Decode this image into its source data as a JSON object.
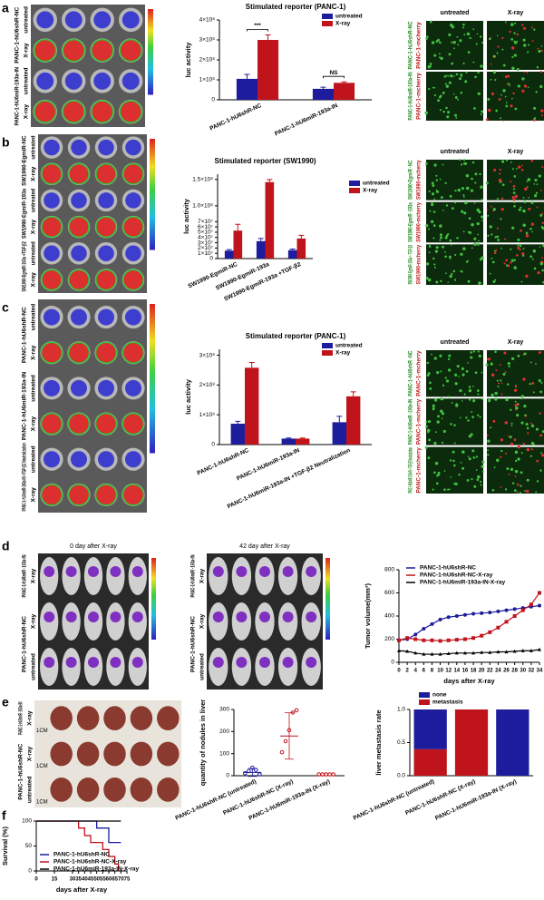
{
  "figure": {
    "panel_letters": [
      "a",
      "b",
      "c",
      "d",
      "e",
      "f"
    ]
  },
  "images": [
    {
      "groups": [
        {
          "label": "PANC-1-hU6shR-NC",
          "rows": [
            "untreated",
            "X-ray"
          ]
        },
        {
          "label": "PANC-1-hU6miR-193a-IN",
          "rows": [
            "untreated",
            "X-ray"
          ]
        }
      ]
    },
    {
      "columns": [
        "untreated",
        "X-ray"
      ],
      "groups": [
        {
          "label": "PANC-1-hU6shR-NC",
          "rows": [
            "PANC-1-mcherry"
          ]
        },
        {
          "label": "PANC-1-hU6miR-193a-IN",
          "rows": [
            "PANC-1-mcherry"
          ]
        }
      ]
    },
    {
      "groups": [
        {
          "label": "SW1990-EgmiR-NC",
          "rows": [
            "untreated",
            "X-ray"
          ]
        },
        {
          "label": "SW1990-EgmiR-193a",
          "rows": [
            "untreated",
            "X-ray"
          ]
        },
        {
          "label": "SW1990-EgmiR-193a +TGF-β2",
          "rows": [
            "untreated",
            "X-ray"
          ]
        }
      ]
    },
    {
      "columns": [
        "untreated",
        "X-ray"
      ],
      "groups": [
        {
          "label": "SW1990-EgmiR -NC",
          "rows": [
            "SW1990-mcherry"
          ]
        },
        {
          "label": "SW1990-EgmiR -193a",
          "rows": [
            "SW1990-mcherry"
          ]
        },
        {
          "label": "SW1990-EgmiR-193a + TGF-β2",
          "rows": [
            "SW1990-mcherry"
          ]
        }
      ]
    },
    {
      "groups": [
        {
          "label": "PANC-1-hU6shR-NC",
          "rows": [
            "untreated",
            "X-ray"
          ]
        },
        {
          "label": "PANC-1-hU6miR-193a-IN",
          "rows": [
            "untreated",
            "X-ray"
          ]
        },
        {
          "label": "PANC-1-hU6miR-193a-IN +TGF-β2 Neutralization",
          "rows": [
            "untreated",
            "X-ray"
          ]
        }
      ]
    },
    {
      "columns": [
        "untreated",
        "X-ray"
      ],
      "groups": [
        {
          "label": "PANC-1-hU6shR -NC",
          "rows": [
            "PANC-1-mcherry"
          ]
        },
        {
          "label": "PANC-1-hU6miR -193a-IN",
          "rows": [
            "PANC-1-mcherry"
          ]
        },
        {
          "label": "PANC-1-hU6miR-193a-IN + TGF-β2 Neutralization",
          "rows": [
            "PANC-1-mcherry"
          ]
        }
      ]
    },
    {
      "title": "0 day after X-ray",
      "groups": [
        {
          "label": "PANC-1-hU6miR -193a-IN",
          "rows": [
            "X-ray"
          ]
        },
        {
          "label": "PANC-1-hU6shR-NC",
          "rows": [
            "X-ray",
            "untreated"
          ]
        }
      ]
    },
    {
      "title": "42 day after X-ray",
      "groups": [
        {
          "label": "PANC-1-hU6miR -193a-IN",
          "rows": [
            "X-ray"
          ]
        },
        {
          "label": "PANC-1-hU6shR-NC",
          "rows": [
            "X-ray",
            "untreated"
          ]
        }
      ]
    },
    {
      "groups": [
        {
          "label": "PANC-1-hU6miR -193a-IN",
          "rows": [
            "X-ray"
          ]
        },
        {
          "label": "PANC-1-hU6shR-NC",
          "rows": [
            "X-ray",
            "untreated"
          ]
        }
      ],
      "scale_labels": [
        "1CM",
        "1CM",
        "1CM"
      ]
    }
  ],
  "chart_data": [
    {
      "type": "bar",
      "title": "Stimulated reporter (PANC-1)",
      "y_label": "luc activity",
      "categories": [
        "PANC-1-hU6shR-NC",
        "PANC-1-hU6miR-193a-IN"
      ],
      "series": [
        {
          "name": "untreated",
          "color": "#1c1c9c",
          "values": [
            105000000,
            55000000
          ],
          "errors": [
            22000000,
            8000000
          ]
        },
        {
          "name": "X-ray",
          "color": "#c0141c",
          "values": [
            300000000,
            85000000
          ],
          "errors": [
            25000000,
            5000000
          ]
        }
      ],
      "ylim": [
        0,
        400000000
      ],
      "yticks": [
        0,
        {
          "value": 100000000,
          "label": "1×10⁸"
        },
        {
          "value": 200000000,
          "label": "2×10⁸"
        },
        {
          "value": 300000000,
          "label": "3×10⁸"
        },
        {
          "value": 400000000,
          "label": "4×10⁸"
        }
      ],
      "legend": "top-right",
      "annotations": [
        "***",
        "NS"
      ]
    },
    {
      "type": "bar",
      "title": "Stimulated reporter  (SW1990)",
      "y_label": "luc activity",
      "categories": [
        "SW1990-EgmiR-NC",
        "SW1990-EgmiR-193a",
        "SW1990-EgmiR-193a +TGF-β2"
      ],
      "series": [
        {
          "name": "untreated",
          "color": "#1c1c9c",
          "values": [
            15000000,
            33000000,
            16000000
          ],
          "errors": [
            2000000,
            5000000,
            2000000
          ]
        },
        {
          "name": "X-ray",
          "color": "#c0141c",
          "values": [
            53000000,
            145000000,
            38000000
          ],
          "errors": [
            12000000,
            5000000,
            6000000
          ]
        }
      ],
      "ylim": [
        0,
        160000000
      ],
      "yticks": [
        0,
        {
          "value": 10000000,
          "label": "1×10⁷"
        },
        {
          "value": 20000000,
          "label": "2×10⁷"
        },
        {
          "value": 30000000,
          "label": "3×10⁷"
        },
        {
          "value": 40000000,
          "label": "4×10⁷"
        },
        {
          "value": 50000000,
          "label": "5×10⁷"
        },
        {
          "value": 60000000,
          "label": "6×10⁷"
        },
        {
          "value": 70000000,
          "label": "7×10⁷"
        },
        {
          "value": 100000000,
          "label": "1.0×10⁸"
        },
        {
          "value": 150000000,
          "label": "1.5×10⁸"
        }
      ],
      "legend": "right"
    },
    {
      "type": "bar",
      "title": "Stimulated reporter (PANC-1)",
      "y_label": "luc activity",
      "categories": [
        "PANC-1-hU6shR-NC",
        "PANC-1-hU6miR-193a-IN",
        "PANC-1-hU6miR-193a-IN +TGF-β2 Neutralization"
      ],
      "series": [
        {
          "name": "untreated",
          "color": "#1c1c9c",
          "values": [
            70000000,
            20000000,
            75000000
          ],
          "errors": [
            8000000,
            2000000,
            20000000
          ]
        },
        {
          "name": "X-ray",
          "color": "#c0141c",
          "values": [
            258000000,
            20000000,
            162000000
          ],
          "errors": [
            18000000,
            2000000,
            15000000
          ]
        }
      ],
      "ylim": [
        0,
        320000000
      ],
      "yticks": [
        0,
        {
          "value": 100000000,
          "label": "1×10⁸"
        },
        {
          "value": 200000000,
          "label": "2×10⁸"
        },
        {
          "value": 300000000,
          "label": "3×10⁸"
        }
      ],
      "legend": "top-right"
    },
    {
      "type": "line",
      "y_label": "Tumor volume(mm³)",
      "x_label": "days after X-ray",
      "x": [
        0,
        2,
        4,
        6,
        8,
        10,
        12,
        14,
        16,
        18,
        20,
        22,
        24,
        26,
        28,
        30,
        32,
        34
      ],
      "series": [
        {
          "name": "PANC-1-hU6shR-NC",
          "color": "#1c1c9c",
          "values": [
            190,
            200,
            240,
            290,
            330,
            370,
            390,
            400,
            410,
            420,
            425,
            430,
            440,
            450,
            460,
            470,
            480,
            490
          ]
        },
        {
          "name": "PANC-1-hU6shR-NC-X-ray",
          "color": "#c0141c",
          "values": [
            190,
            210,
            200,
            190,
            190,
            185,
            190,
            195,
            200,
            210,
            230,
            260,
            300,
            350,
            400,
            450,
            500,
            600
          ]
        },
        {
          "name": "PANC-1-hU6miR-193a-IN-X-ray",
          "color": "#000000",
          "values": [
            100,
            95,
            80,
            70,
            70,
            70,
            75,
            80,
            80,
            80,
            85,
            85,
            90,
            90,
            95,
            100,
            100,
            110
          ]
        }
      ],
      "xlim": [
        0,
        34
      ],
      "xticks": [
        0,
        2,
        4,
        6,
        8,
        10,
        12,
        14,
        16,
        18,
        20,
        22,
        24,
        26,
        28,
        30,
        32,
        34
      ],
      "ylim": [
        0,
        800
      ],
      "yticks": [
        0,
        200,
        400,
        600,
        800
      ],
      "legend": "top"
    },
    {
      "type": "dot",
      "y_label": "quantity of nodules in liver",
      "categories": [
        "PANC-1-hU6shR-NC (untreated)",
        "PANC-1-hU6shR-NC (X-ray)",
        "PANC-1-hU6miR-193a-IN (X-ray)"
      ],
      "colors": [
        "#1c1c9c",
        "#c0141c",
        "#c0141c"
      ],
      "points": [
        [
          5,
          15,
          30,
          20,
          0
        ],
        [
          100,
          150,
          200,
          280,
          290
        ],
        [
          0,
          0,
          0,
          0,
          0
        ]
      ],
      "means": [
        15,
        180,
        0
      ],
      "errors": [
        18,
        105,
        0
      ],
      "ylim": [
        0,
        300
      ],
      "yticks": [
        0,
        100,
        200,
        300
      ]
    },
    {
      "type": "stacked-bar",
      "y_label": "liver metastasis rate",
      "categories": [
        "PANC-1-hU6shR-NC (untreated)",
        "PANC-1-hU6shR-NC (X-ray)",
        "PANC-1-hU6miR-193a-IN (X-ray)"
      ],
      "series": [
        {
          "name": "none",
          "color": "#1c1c9c",
          "values": [
            0.6,
            0,
            1
          ]
        },
        {
          "name": "metastasis",
          "color": "#c0141c",
          "values": [
            0.4,
            1,
            0
          ]
        }
      ],
      "ylim": [
        0,
        1
      ],
      "yticks": [
        {
          "value": 0,
          "label": "0.0"
        },
        {
          "value": 0.5,
          "label": "0.5"
        },
        {
          "value": 1,
          "label": "1.0"
        }
      ],
      "legend": "top-left"
    },
    {
      "type": "step",
      "y_label": "Survival (%)",
      "x_label": "days after X-ray",
      "series": [
        {
          "name": "PANC-1-hU6shR-NC",
          "color": "#1c1c9c",
          "x": [
            0,
            50,
            60,
            70
          ],
          "values": [
            100,
            86,
            57,
            57
          ]
        },
        {
          "name": "PANC-1-hU6shR-NC-X-ray",
          "color": "#c0141c",
          "x": [
            0,
            35,
            40,
            45,
            55,
            60,
            65,
            68
          ],
          "values": [
            100,
            86,
            71,
            57,
            43,
            29,
            14,
            0
          ]
        },
        {
          "name": "PANC-1-hU6miR-193a-IN-X-ray",
          "color": "#000000",
          "x": [
            0,
            70
          ],
          "values": [
            100,
            100
          ]
        }
      ],
      "xlim": [
        0,
        75
      ],
      "xticks": [
        0,
        15,
        30,
        35,
        40,
        45,
        50,
        55,
        60,
        65,
        70,
        75
      ],
      "ylim": [
        0,
        100
      ],
      "yticks": [
        0,
        50,
        100
      ],
      "legend": "bottom-left"
    }
  ]
}
